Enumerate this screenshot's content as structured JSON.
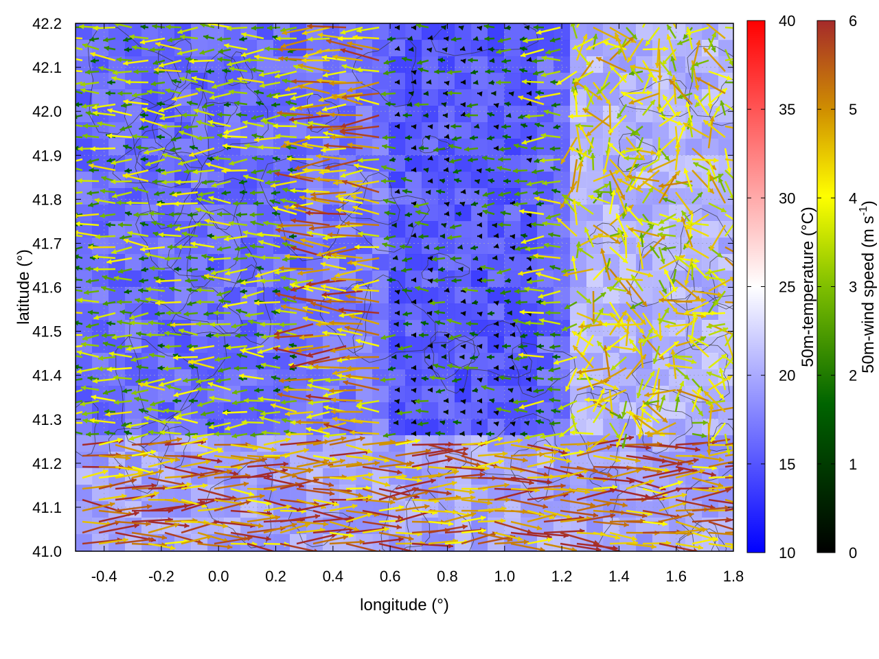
{
  "chart_data": {
    "type": "heatmap",
    "title": "",
    "xlabel": "longitude (°)",
    "ylabel": "latitude (°)",
    "xlim": [
      -0.5,
      1.8
    ],
    "ylim": [
      41.0,
      42.2
    ],
    "xticks": [
      "-0.4",
      "-0.2",
      "0.0",
      "0.2",
      "0.4",
      "0.6",
      "0.8",
      "1.0",
      "1.2",
      "1.4",
      "1.6",
      "1.8"
    ],
    "yticks": [
      "41.0",
      "41.1",
      "41.2",
      "41.3",
      "41.4",
      "41.5",
      "41.6",
      "41.7",
      "41.8",
      "41.9",
      "42.0",
      "42.1",
      "42.2"
    ],
    "grid": true,
    "layers": [
      "temperature field",
      "terrain contours",
      "wind vectors"
    ],
    "temperature_colorbar": {
      "label": "50m-temperature (°C)",
      "range": [
        10,
        40
      ],
      "ticks": [
        "10",
        "15",
        "20",
        "25",
        "30",
        "35",
        "40"
      ],
      "colors": [
        "#0000ff",
        "#ffffff",
        "#ff0000"
      ]
    },
    "wind_colorbar": {
      "label": "50m-wind speed (m s-1)",
      "label_main": "50m-wind speed (m s",
      "label_sup": "-1",
      "label_end": ")",
      "range": [
        0,
        6
      ],
      "ticks": [
        "0",
        "1",
        "2",
        "3",
        "4",
        "5",
        "6"
      ],
      "colors": [
        "#000000",
        "#006400",
        "#7fbf00",
        "#ffff00",
        "#d09000",
        "#a52a2a"
      ]
    },
    "regions": [
      {
        "name": "west",
        "lon_range": [
          -0.5,
          0.6
        ],
        "temperature": 16,
        "wind_direction": "westward",
        "wind_speed": 2.5
      },
      {
        "name": "north-center",
        "lon_range": [
          0.3,
          1.0
        ],
        "temperature": 17,
        "wind_direction": "westward",
        "wind_speed": 4.5
      },
      {
        "name": "center",
        "lon_range": [
          0.6,
          1.1
        ],
        "temperature": 15,
        "wind_direction": "westward",
        "wind_speed": 0.8
      },
      {
        "name": "east",
        "lon_range": [
          1.2,
          1.8
        ],
        "temperature": 21,
        "wind_direction": "variable",
        "wind_speed": 3.5
      },
      {
        "name": "south-east",
        "lat_range": [
          41.0,
          41.25
        ],
        "temperature": 20,
        "wind_direction": "eastward",
        "wind_speed": 5.0
      }
    ]
  }
}
